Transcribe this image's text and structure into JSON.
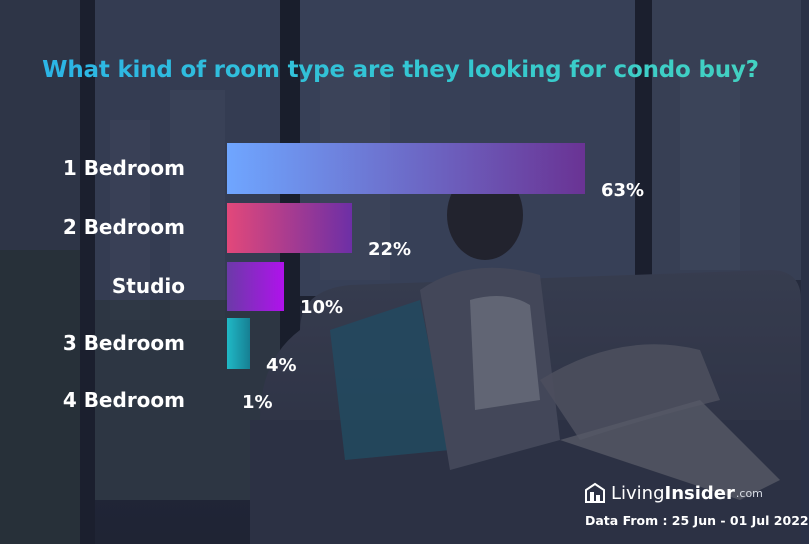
{
  "chart_data": {
    "type": "bar",
    "orientation": "horizontal",
    "title": "What kind of room type are they looking for condo buy?",
    "xlabel": "",
    "ylabel": "",
    "categories": [
      "1 Bedroom",
      "2 Bedroom",
      "Studio",
      "3 Bedroom",
      "4 Bedroom"
    ],
    "values": [
      63,
      22,
      10,
      4,
      1
    ],
    "value_labels": [
      "63%",
      "22%",
      "10%",
      "4%",
      "1%"
    ],
    "unit": "%",
    "xlim": [
      0,
      63
    ],
    "grid": false,
    "legend": "none",
    "colors": [
      [
        "#6fa6ff",
        "#6a3394"
      ],
      [
        "#e2487a",
        "#6d2fa6"
      ],
      [
        "#6b3aa8",
        "#b012ec"
      ],
      [
        "#20b9c6",
        "#167f93"
      ],
      [
        "#20b9c6",
        "#167f93"
      ]
    ]
  },
  "branding": {
    "logo_part1": "Living",
    "logo_part2": "Insider",
    "logo_suffix": ".com",
    "source_text": "Data From :  25 Jun - 01 Jul 2022"
  }
}
